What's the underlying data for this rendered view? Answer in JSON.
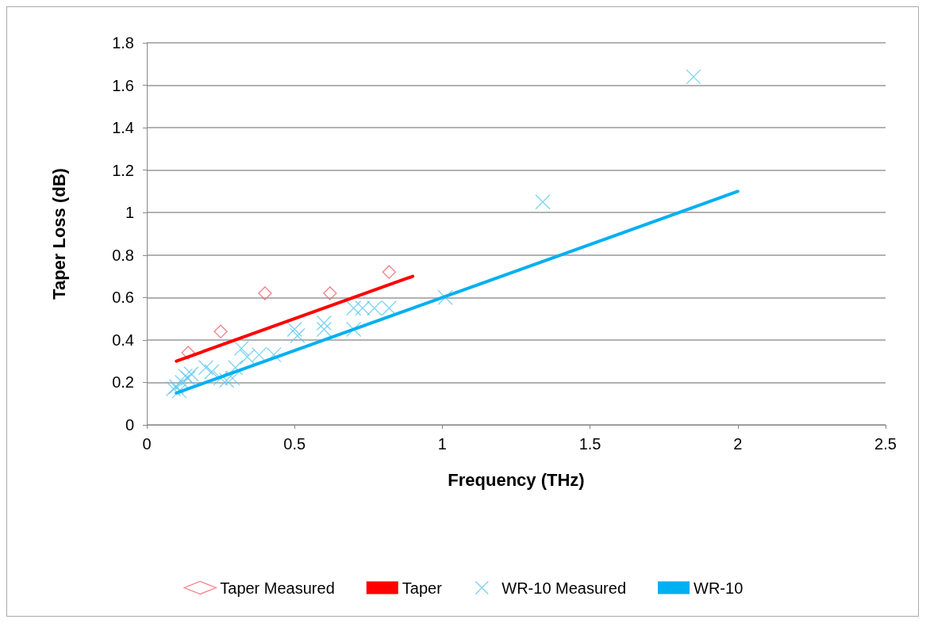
{
  "chart_data": {
    "type": "scatter",
    "xlabel": "Frequency (THz)",
    "ylabel": "Taper Loss (dB)",
    "xlim": [
      0,
      2.5
    ],
    "xticks": [
      0,
      0.5,
      1,
      1.5,
      2,
      2.5
    ],
    "ylim": [
      0,
      1.8
    ],
    "yticks": [
      0,
      0.2,
      0.4,
      0.6,
      0.8,
      1,
      1.2,
      1.4,
      1.6,
      1.8
    ],
    "grid": "y",
    "legend": "bottom",
    "series": [
      {
        "name": "Taper Measured",
        "marker": "diamond",
        "color": "#f0606a",
        "x": [
          0.14,
          0.25,
          0.4,
          0.62,
          0.82
        ],
        "values": [
          0.34,
          0.44,
          0.62,
          0.62,
          0.72
        ]
      },
      {
        "name": "Taper",
        "type": "line",
        "marker": "none",
        "color": "#ff0000",
        "x": [
          0.1,
          0.9
        ],
        "values": [
          0.3,
          0.7
        ]
      },
      {
        "name": "WR-10 Measured",
        "marker": "cross",
        "color": "#5bc8ee",
        "x": [
          0.09,
          0.1,
          0.11,
          0.12,
          0.13,
          0.14,
          0.15,
          0.2,
          0.22,
          0.25,
          0.27,
          0.29,
          0.3,
          0.32,
          0.34,
          0.38,
          0.43,
          0.5,
          0.51,
          0.6,
          0.6,
          0.7,
          0.7,
          0.73,
          0.77,
          0.82,
          1.01,
          1.34,
          1.85
        ],
        "values": [
          0.17,
          0.18,
          0.16,
          0.2,
          0.23,
          0.22,
          0.24,
          0.27,
          0.25,
          0.22,
          0.21,
          0.22,
          0.27,
          0.36,
          0.32,
          0.33,
          0.33,
          0.45,
          0.42,
          0.48,
          0.45,
          0.45,
          0.55,
          0.55,
          0.55,
          0.55,
          0.6,
          1.05,
          1.64
        ]
      },
      {
        "name": "WR-10",
        "type": "line",
        "marker": "none",
        "color": "#00b0f0",
        "x": [
          0.1,
          2
        ],
        "values": [
          0.15,
          1.1
        ]
      }
    ]
  }
}
